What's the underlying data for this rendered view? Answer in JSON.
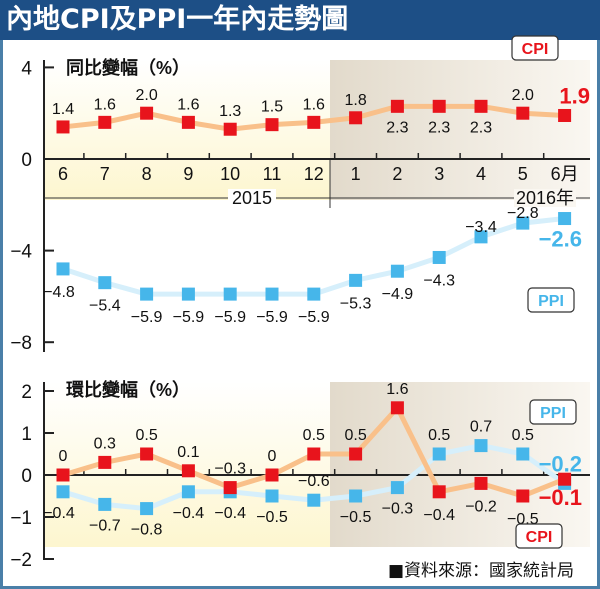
{
  "title": "內地CPI及PPI一年內走勢圖",
  "source": "■資料來源：國家統計局",
  "colors": {
    "cpi": "#e8141c",
    "cpi_line": "#f9c08a",
    "ppi": "#46b6ea",
    "ppi_line": "#d6effb",
    "title_bg": "#1d4f86"
  },
  "chart_data": [
    {
      "type": "line",
      "title": "同比變幅（%）",
      "ylim": [
        -8,
        4
      ],
      "yticks": [
        "4",
        "0",
        "−4",
        "−8"
      ],
      "ytick_values": [
        4,
        0,
        -4,
        -8
      ],
      "categories": [
        "6",
        "7",
        "8",
        "9",
        "10",
        "11",
        "12",
        "1",
        "2",
        "3",
        "4",
        "5",
        "6月"
      ],
      "year_labels": [
        "2015",
        "2016年"
      ],
      "series": [
        {
          "name": "CPI",
          "values": [
            1.4,
            1.6,
            2.0,
            1.6,
            1.3,
            1.5,
            1.6,
            1.8,
            2.3,
            2.3,
            2.3,
            2.0,
            1.9
          ],
          "labels": [
            "1.4",
            "1.6",
            "2.0",
            "1.6",
            "1.3",
            "1.5",
            "1.6",
            "1.8",
            "2.3",
            "2.3",
            "2.3",
            "2.0",
            "1.9"
          ]
        },
        {
          "name": "PPI",
          "values": [
            -4.8,
            -5.4,
            -5.9,
            -5.9,
            -5.9,
            -5.9,
            -5.9,
            -5.3,
            -4.9,
            -4.3,
            -3.4,
            -2.8,
            -2.6
          ],
          "labels": [
            "−4.8",
            "−5.4",
            "−5.9",
            "−5.9",
            "−5.9",
            "−5.9",
            "−5.9",
            "−5.3",
            "−4.9",
            "−4.3",
            "−3.4",
            "−2.8",
            "−2.6"
          ]
        }
      ]
    },
    {
      "type": "line",
      "title": "環比變幅（%）",
      "ylim": [
        -2,
        2
      ],
      "yticks": [
        "2",
        "1",
        "0",
        "−1",
        "−2"
      ],
      "ytick_values": [
        2,
        1,
        0,
        -1,
        -2
      ],
      "categories": [
        "6",
        "7",
        "8",
        "9",
        "10",
        "11",
        "12",
        "1",
        "2",
        "3",
        "4",
        "5",
        "6"
      ],
      "series": [
        {
          "name": "CPI",
          "values": [
            0,
            0.3,
            0.5,
            0.1,
            -0.3,
            0,
            0.5,
            0.5,
            1.6,
            -0.4,
            -0.2,
            -0.5,
            -0.1
          ],
          "labels": [
            "0",
            "0.3",
            "0.5",
            "0.1",
            "−0.3",
            "0",
            "0.5",
            "0.5",
            "1.6",
            "−0.4",
            "−0.2",
            "−0.5",
            "−0.1"
          ]
        },
        {
          "name": "PPI",
          "values": [
            -0.4,
            -0.7,
            -0.8,
            -0.4,
            -0.4,
            -0.5,
            -0.6,
            -0.5,
            -0.3,
            0.5,
            0.7,
            0.5,
            -0.2
          ],
          "labels": [
            "−0.4",
            "−0.7",
            "−0.8",
            "−0.4",
            "−0.4",
            "−0.5",
            "−0.6",
            "−0.5",
            "−0.3",
            "0.5",
            "0.7",
            "0.5",
            "−0.2"
          ]
        }
      ]
    }
  ]
}
